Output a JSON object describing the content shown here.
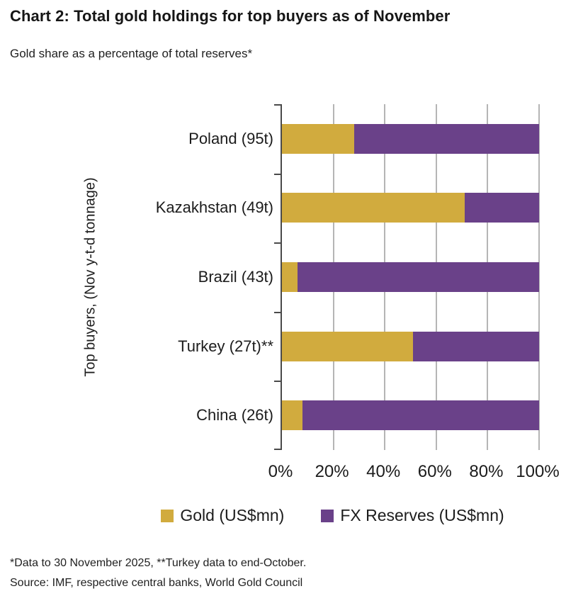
{
  "header": {
    "title": "Chart 2: Total gold holdings for top buyers as of November",
    "subtitle": "Gold share as a percentage of total reserves*"
  },
  "chart_data": {
    "type": "bar",
    "orientation": "horizontal",
    "stacked": true,
    "title": "Chart 2: Total gold holdings for top buyers as of November",
    "subtitle": "Gold share as a percentage of total reserves*",
    "categories": [
      "Poland (95t)",
      "Kazakhstan (49t)",
      "Brazil (43t)",
      "Turkey (27t)**",
      "China (26t)"
    ],
    "series": [
      {
        "name": "Gold (US$mn)",
        "color": "#d1ab3e",
        "values": [
          28,
          71,
          6,
          51,
          8
        ]
      },
      {
        "name": "FX Reserves (US$mn)",
        "color": "#6a4189",
        "values": [
          72,
          29,
          94,
          49,
          92
        ]
      }
    ],
    "ylabel": "Top buyers, (Nov y-t-d tonnage)",
    "xlabel": "",
    "xlim": [
      0,
      100
    ],
    "xticks": [
      0,
      20,
      40,
      60,
      80,
      100
    ],
    "xtick_labels": [
      "0%",
      "20%",
      "40%",
      "60%",
      "80%",
      "100%"
    ],
    "grid": "vertical",
    "legend_position": "bottom"
  },
  "colors": {
    "gold": "#d1ab3e",
    "purple": "#6a4189",
    "gridline": "#b5b5b5",
    "axis": "#4a4a4a"
  },
  "footnotes": {
    "line1": "*Data to 30 November 2025, **Turkey data to end-October.",
    "line2": "Source: IMF, respective central banks, World Gold Council"
  }
}
